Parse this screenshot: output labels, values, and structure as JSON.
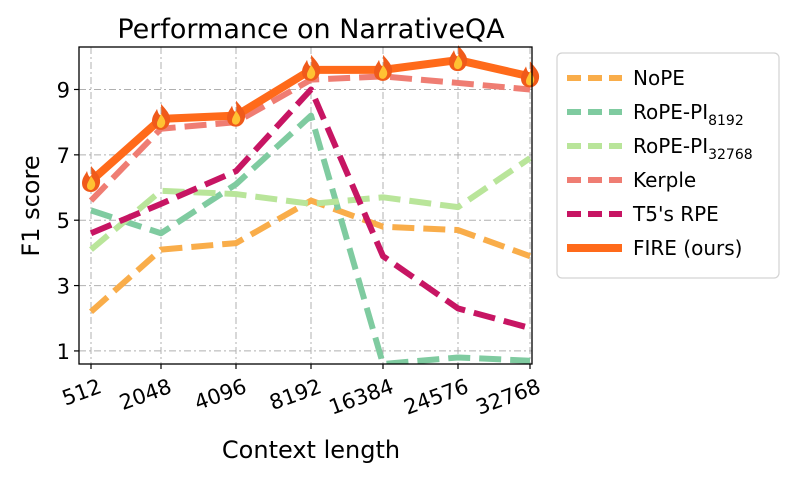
{
  "chart_data": {
    "type": "line",
    "title": "Performance on NarrativeQA",
    "xlabel": "Context length",
    "ylabel": "F1 score",
    "categories": [
      "512",
      "2048",
      "4096",
      "8192",
      "16384",
      "24576",
      "32768"
    ],
    "yticks": [
      1,
      3,
      5,
      7,
      9
    ],
    "ylim": [
      0.6,
      10.3
    ],
    "grid": true,
    "legend_position": "outside-right",
    "series": [
      {
        "name": "NoPE",
        "sub": "",
        "color": "#f9ad4a",
        "style": "dashed",
        "values": [
          2.2,
          4.1,
          4.3,
          5.6,
          4.8,
          4.7,
          3.9
        ]
      },
      {
        "name": "RoPE-PI",
        "sub": "8192",
        "color": "#7fcba0",
        "style": "dashed",
        "values": [
          5.3,
          4.6,
          6.1,
          8.2,
          0.6,
          0.8,
          0.7
        ]
      },
      {
        "name": "RoPE-PI",
        "sub": "32768",
        "color": "#b9e59a",
        "style": "dashed",
        "values": [
          4.1,
          5.9,
          5.8,
          5.5,
          5.7,
          5.4,
          6.9
        ]
      },
      {
        "name": "Kerple",
        "sub": "",
        "color": "#ef7d73",
        "style": "dashed",
        "values": [
          5.6,
          7.8,
          8.0,
          9.3,
          9.4,
          9.2,
          9.0
        ]
      },
      {
        "name": "T5's RPE",
        "sub": "",
        "color": "#c71563",
        "style": "dashed",
        "values": [
          4.6,
          5.5,
          6.5,
          9.0,
          3.9,
          2.3,
          1.7
        ]
      },
      {
        "name": "FIRE (ours)",
        "sub": "",
        "color": "#ff6a1a",
        "style": "solid",
        "marker": "fire",
        "values": [
          6.2,
          8.1,
          8.2,
          9.6,
          9.6,
          9.9,
          9.4
        ]
      }
    ]
  }
}
